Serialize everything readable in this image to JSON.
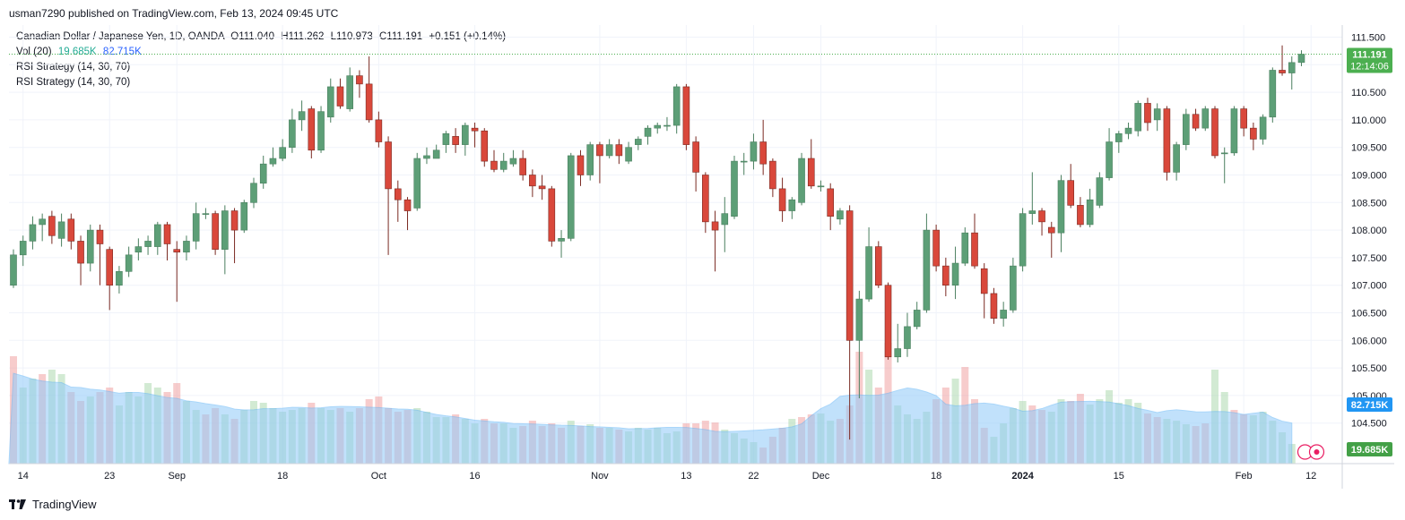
{
  "header": {
    "publisher_line": "usman7290 published on TradingView.com, Feb 13, 2024 09:45 UTC"
  },
  "legend": {
    "symbol": "Canadian Dollar / Japanese Yen, 1D, OANDA",
    "open": "O111.040",
    "high": "H111.262",
    "low": "L110.973",
    "close": "C111.191",
    "change": "+0.151 (+0.14%)",
    "vol_label": "Vol (20)",
    "vol_value": "19.685K",
    "vol_ma_value": "82.715K",
    "indicator1": "RSI Strategy (14, 30, 70)",
    "indicator2": "RSI Strategy (14, 30, 70)"
  },
  "footer": {
    "brand": "TradingView"
  },
  "colors": {
    "up": "#5d9f77",
    "down": "#d9483b",
    "wick_up": "#4a7f5f",
    "wick_down": "#7a2a22",
    "grid": "#f0f3fa",
    "vol_ma_fill": "#90caf9",
    "price_badge": "#4caf50",
    "vol_ma_badge": "#2196f3",
    "vol_badge": "#43a047"
  },
  "chart_data": {
    "type": "candlestick",
    "title": "Canadian Dollar / Japanese Yen, 1D, OANDA",
    "y_axis": {
      "ticks": [
        "111.500",
        "111.000",
        "110.500",
        "110.000",
        "109.500",
        "109.000",
        "108.500",
        "108.000",
        "107.500",
        "107.000",
        "106.500",
        "106.000",
        "105.500",
        "105.000",
        "104.500"
      ],
      "range": [
        104.0,
        111.75
      ]
    },
    "x_axis": {
      "labels": [
        {
          "text": "14",
          "index": 1
        },
        {
          "text": "23",
          "index": 10
        },
        {
          "text": "Sep",
          "index": 17
        },
        {
          "text": "18",
          "index": 28
        },
        {
          "text": "Oct",
          "index": 38
        },
        {
          "text": "16",
          "index": 48
        },
        {
          "text": "Nov",
          "index": 61
        },
        {
          "text": "13",
          "index": 70
        },
        {
          "text": "22",
          "index": 77
        },
        {
          "text": "Dec",
          "index": 84
        },
        {
          "text": "18",
          "index": 96
        },
        {
          "text": "2024",
          "index": 105
        },
        {
          "text": "15",
          "index": 115
        },
        {
          "text": "Feb",
          "index": 128
        },
        {
          "text": "12",
          "index": 135
        }
      ]
    },
    "last_price_label": "111.191",
    "countdown_label": "12:14:06",
    "vol_ma_label": "82.715K",
    "vol_label": "19.685K",
    "candles": [
      [
        107.0,
        107.55,
        107.65,
        106.95
      ],
      [
        107.55,
        107.8,
        107.9,
        107.35
      ],
      [
        107.8,
        108.1,
        108.25,
        107.65
      ],
      [
        108.1,
        108.2,
        108.3,
        107.8
      ],
      [
        108.25,
        107.9,
        108.35,
        107.75
      ],
      [
        107.85,
        108.15,
        108.3,
        107.7
      ],
      [
        108.2,
        107.8,
        108.3,
        107.65
      ],
      [
        107.8,
        107.4,
        107.9,
        107.0
      ],
      [
        107.4,
        108.0,
        108.1,
        107.25
      ],
      [
        108.0,
        107.75,
        108.1,
        107.0
      ],
      [
        107.65,
        107.0,
        107.7,
        106.55
      ],
      [
        107.0,
        107.25,
        107.35,
        106.85
      ],
      [
        107.25,
        107.55,
        107.7,
        107.15
      ],
      [
        107.6,
        107.7,
        107.85,
        107.45
      ],
      [
        107.7,
        107.8,
        107.9,
        107.55
      ],
      [
        107.7,
        108.1,
        108.15,
        107.55
      ],
      [
        108.1,
        107.75,
        108.15,
        107.45
      ],
      [
        107.65,
        107.6,
        107.8,
        106.7
      ],
      [
        107.6,
        107.8,
        107.9,
        107.45
      ],
      [
        107.8,
        108.3,
        108.5,
        107.65
      ],
      [
        108.3,
        108.3,
        108.4,
        108.2
      ],
      [
        108.3,
        107.65,
        108.35,
        107.55
      ],
      [
        107.65,
        108.35,
        108.45,
        107.2
      ],
      [
        108.35,
        108.0,
        108.4,
        107.4
      ],
      [
        108.0,
        108.5,
        108.55,
        107.95
      ],
      [
        108.5,
        108.85,
        108.95,
        108.4
      ],
      [
        108.85,
        109.2,
        109.35,
        108.75
      ],
      [
        109.2,
        109.3,
        109.5,
        109.15
      ],
      [
        109.3,
        109.5,
        109.65,
        109.25
      ],
      [
        109.5,
        110.0,
        110.2,
        109.4
      ],
      [
        110.0,
        110.15,
        110.35,
        109.8
      ],
      [
        110.2,
        109.45,
        110.25,
        109.3
      ],
      [
        109.45,
        110.15,
        110.25,
        109.4
      ],
      [
        110.05,
        110.6,
        110.75,
        109.95
      ],
      [
        110.6,
        110.25,
        110.75,
        110.2
      ],
      [
        110.2,
        110.8,
        110.95,
        110.15
      ],
      [
        110.8,
        110.65,
        110.9,
        110.4
      ],
      [
        110.65,
        110.0,
        111.15,
        109.95
      ],
      [
        110.0,
        109.6,
        110.15,
        109.5
      ],
      [
        109.6,
        108.75,
        109.7,
        107.55
      ],
      [
        108.75,
        108.55,
        108.9,
        108.15
      ],
      [
        108.55,
        108.35,
        108.6,
        108.0
      ],
      [
        108.4,
        109.3,
        109.4,
        108.35
      ],
      [
        109.3,
        109.35,
        109.5,
        109.2
      ],
      [
        109.3,
        109.45,
        109.55,
        109.35
      ],
      [
        109.55,
        109.75,
        109.8,
        109.4
      ],
      [
        109.7,
        109.55,
        109.85,
        109.4
      ],
      [
        109.55,
        109.9,
        109.95,
        109.35
      ],
      [
        109.85,
        109.8,
        109.95,
        109.5
      ],
      [
        109.8,
        109.25,
        109.85,
        109.15
      ],
      [
        109.25,
        109.1,
        109.45,
        109.05
      ],
      [
        109.1,
        109.25,
        109.4,
        109.05
      ],
      [
        109.2,
        109.3,
        109.45,
        109.15
      ],
      [
        109.3,
        109.0,
        109.45,
        108.9
      ],
      [
        109.0,
        108.8,
        109.1,
        108.6
      ],
      [
        108.8,
        108.75,
        109.0,
        108.55
      ],
      [
        108.75,
        107.8,
        108.8,
        107.7
      ],
      [
        107.8,
        107.85,
        108.0,
        107.5
      ],
      [
        107.85,
        109.35,
        109.4,
        107.8
      ],
      [
        109.35,
        109.0,
        109.45,
        108.8
      ],
      [
        109.0,
        109.55,
        109.6,
        108.9
      ],
      [
        109.55,
        109.35,
        109.6,
        108.85
      ],
      [
        109.35,
        109.55,
        109.65,
        109.3
      ],
      [
        109.55,
        109.35,
        109.65,
        109.2
      ],
      [
        109.25,
        109.5,
        109.6,
        109.2
      ],
      [
        109.55,
        109.65,
        109.7,
        109.45
      ],
      [
        109.7,
        109.85,
        109.9,
        109.55
      ],
      [
        109.85,
        109.9,
        109.95,
        109.75
      ],
      [
        109.9,
        109.9,
        110.05,
        109.8
      ],
      [
        109.9,
        110.6,
        110.65,
        109.75
      ],
      [
        110.6,
        109.55,
        110.65,
        109.45
      ],
      [
        109.6,
        109.05,
        109.7,
        108.7
      ],
      [
        109.0,
        108.15,
        109.05,
        107.95
      ],
      [
        108.15,
        108.0,
        108.35,
        107.25
      ],
      [
        108.1,
        108.3,
        108.6,
        107.6
      ],
      [
        108.25,
        109.25,
        109.35,
        108.2
      ],
      [
        109.25,
        109.25,
        109.4,
        109.0
      ],
      [
        109.25,
        109.6,
        109.75,
        109.1
      ],
      [
        109.6,
        109.2,
        110.0,
        109.0
      ],
      [
        109.25,
        108.75,
        109.3,
        108.6
      ],
      [
        108.75,
        108.35,
        108.95,
        108.15
      ],
      [
        108.35,
        108.55,
        108.6,
        108.2
      ],
      [
        108.5,
        109.3,
        109.4,
        108.45
      ],
      [
        109.3,
        108.8,
        109.65,
        108.75
      ],
      [
        108.8,
        108.8,
        108.9,
        108.7
      ],
      [
        108.75,
        108.25,
        108.85,
        108.0
      ],
      [
        108.2,
        108.35,
        108.4,
        108.1
      ],
      [
        108.35,
        106.0,
        108.45,
        104.2
      ],
      [
        106.0,
        106.75,
        106.9,
        104.95
      ],
      [
        106.75,
        107.7,
        108.05,
        106.7
      ],
      [
        107.7,
        107.0,
        107.8,
        106.95
      ],
      [
        107.0,
        105.7,
        107.05,
        105.65
      ],
      [
        105.7,
        105.85,
        106.3,
        105.6
      ],
      [
        105.85,
        106.25,
        106.5,
        105.7
      ],
      [
        106.25,
        106.55,
        106.7,
        106.2
      ],
      [
        106.55,
        108.0,
        108.3,
        106.5
      ],
      [
        108.0,
        107.35,
        108.1,
        107.25
      ],
      [
        107.35,
        107.0,
        107.5,
        106.8
      ],
      [
        107.0,
        107.4,
        107.7,
        106.75
      ],
      [
        107.4,
        107.95,
        108.05,
        107.35
      ],
      [
        107.95,
        107.35,
        108.3,
        107.3
      ],
      [
        107.3,
        106.85,
        107.4,
        106.4
      ],
      [
        106.85,
        106.4,
        106.95,
        106.3
      ],
      [
        106.4,
        106.55,
        106.7,
        106.25
      ],
      [
        106.55,
        107.35,
        107.5,
        106.5
      ],
      [
        107.35,
        108.3,
        108.4,
        107.25
      ],
      [
        108.3,
        108.35,
        109.05,
        108.1
      ],
      [
        108.35,
        108.15,
        108.4,
        107.9
      ],
      [
        108.05,
        107.95,
        108.15,
        107.5
      ],
      [
        107.95,
        108.9,
        109.0,
        107.6
      ],
      [
        108.9,
        108.45,
        109.2,
        108.4
      ],
      [
        108.45,
        108.1,
        108.6,
        108.05
      ],
      [
        108.1,
        108.55,
        108.75,
        108.05
      ],
      [
        108.45,
        108.95,
        109.05,
        108.4
      ],
      [
        108.95,
        109.6,
        109.85,
        108.9
      ],
      [
        109.6,
        109.75,
        109.8,
        109.4
      ],
      [
        109.75,
        109.85,
        109.95,
        109.65
      ],
      [
        109.8,
        110.3,
        110.35,
        109.7
      ],
      [
        110.3,
        109.95,
        110.4,
        109.8
      ],
      [
        110.0,
        110.2,
        110.3,
        109.8
      ],
      [
        110.2,
        109.05,
        110.25,
        108.9
      ],
      [
        109.05,
        109.55,
        109.6,
        108.9
      ],
      [
        109.55,
        110.1,
        110.2,
        109.45
      ],
      [
        110.1,
        109.85,
        110.2,
        109.8
      ],
      [
        109.85,
        110.2,
        110.25,
        109.8
      ],
      [
        110.2,
        109.35,
        110.25,
        109.3
      ],
      [
        109.4,
        109.4,
        109.5,
        108.85
      ],
      [
        109.4,
        110.2,
        110.25,
        109.35
      ],
      [
        110.2,
        109.85,
        110.25,
        109.7
      ],
      [
        109.85,
        109.65,
        109.95,
        109.45
      ],
      [
        109.65,
        110.05,
        110.1,
        109.55
      ],
      [
        110.05,
        110.9,
        110.95,
        109.95
      ],
      [
        110.9,
        110.85,
        111.35,
        110.8
      ],
      [
        110.85,
        111.04,
        111.15,
        110.55
      ],
      [
        111.04,
        111.191,
        111.262,
        110.973
      ]
    ],
    "volume": [
      [
        1.2,
        0
      ],
      [
        0.85,
        1
      ],
      [
        0.95,
        1
      ],
      [
        1.0,
        0
      ],
      [
        1.05,
        1
      ],
      [
        1.0,
        1
      ],
      [
        0.8,
        0
      ],
      [
        0.7,
        0
      ],
      [
        0.75,
        1
      ],
      [
        0.8,
        0
      ],
      [
        0.85,
        0
      ],
      [
        0.65,
        1
      ],
      [
        0.8,
        1
      ],
      [
        0.75,
        1
      ],
      [
        0.9,
        1
      ],
      [
        0.85,
        1
      ],
      [
        0.8,
        0
      ],
      [
        0.9,
        0
      ],
      [
        0.7,
        1
      ],
      [
        0.6,
        1
      ],
      [
        0.55,
        0
      ],
      [
        0.62,
        0
      ],
      [
        0.55,
        1
      ],
      [
        0.5,
        0
      ],
      [
        0.6,
        1
      ],
      [
        0.7,
        1
      ],
      [
        0.68,
        1
      ],
      [
        0.62,
        1
      ],
      [
        0.58,
        1
      ],
      [
        0.6,
        1
      ],
      [
        0.62,
        1
      ],
      [
        0.68,
        0
      ],
      [
        0.62,
        1
      ],
      [
        0.6,
        1
      ],
      [
        0.62,
        0
      ],
      [
        0.58,
        1
      ],
      [
        0.62,
        0
      ],
      [
        0.72,
        0
      ],
      [
        0.75,
        0
      ],
      [
        0.62,
        0
      ],
      [
        0.58,
        0
      ],
      [
        0.6,
        0
      ],
      [
        0.62,
        1
      ],
      [
        0.58,
        1
      ],
      [
        0.52,
        1
      ],
      [
        0.52,
        1
      ],
      [
        0.55,
        0
      ],
      [
        0.5,
        1
      ],
      [
        0.45,
        1
      ],
      [
        0.5,
        0
      ],
      [
        0.45,
        0
      ],
      [
        0.45,
        1
      ],
      [
        0.4,
        1
      ],
      [
        0.42,
        0
      ],
      [
        0.48,
        0
      ],
      [
        0.42,
        0
      ],
      [
        0.45,
        0
      ],
      [
        0.4,
        0
      ],
      [
        0.48,
        1
      ],
      [
        0.42,
        0
      ],
      [
        0.44,
        1
      ],
      [
        0.4,
        0
      ],
      [
        0.4,
        1
      ],
      [
        0.38,
        0
      ],
      [
        0.36,
        1
      ],
      [
        0.4,
        1
      ],
      [
        0.38,
        1
      ],
      [
        0.4,
        1
      ],
      [
        0.34,
        1
      ],
      [
        0.36,
        1
      ],
      [
        0.45,
        0
      ],
      [
        0.45,
        0
      ],
      [
        0.48,
        0
      ],
      [
        0.46,
        0
      ],
      [
        0.38,
        1
      ],
      [
        0.34,
        1
      ],
      [
        0.28,
        1
      ],
      [
        0.24,
        1
      ],
      [
        0.18,
        0
      ],
      [
        0.3,
        0
      ],
      [
        0.4,
        0
      ],
      [
        0.5,
        1
      ],
      [
        0.52,
        0
      ],
      [
        0.55,
        0
      ],
      [
        0.56,
        1
      ],
      [
        0.48,
        1
      ],
      [
        0.5,
        0
      ],
      [
        0.65,
        0
      ],
      [
        1.25,
        0
      ],
      [
        1.05,
        1
      ],
      [
        0.85,
        0
      ],
      [
        1.35,
        0
      ],
      [
        0.65,
        1
      ],
      [
        0.55,
        1
      ],
      [
        0.5,
        1
      ],
      [
        0.58,
        1
      ],
      [
        0.72,
        0
      ],
      [
        0.85,
        0
      ],
      [
        0.95,
        1
      ],
      [
        1.08,
        0
      ],
      [
        0.72,
        0
      ],
      [
        0.4,
        0
      ],
      [
        0.3,
        1
      ],
      [
        0.45,
        1
      ],
      [
        0.62,
        1
      ],
      [
        0.7,
        1
      ],
      [
        0.65,
        0
      ],
      [
        0.6,
        0
      ],
      [
        0.58,
        1
      ],
      [
        0.72,
        1
      ],
      [
        0.7,
        0
      ],
      [
        0.78,
        0
      ],
      [
        0.66,
        1
      ],
      [
        0.72,
        1
      ],
      [
        0.82,
        1
      ],
      [
        0.68,
        1
      ],
      [
        0.72,
        1
      ],
      [
        0.68,
        1
      ],
      [
        0.56,
        0
      ],
      [
        0.52,
        0
      ],
      [
        0.5,
        1
      ],
      [
        0.48,
        1
      ],
      [
        0.44,
        1
      ],
      [
        0.42,
        0
      ],
      [
        0.45,
        0
      ],
      [
        1.05,
        1
      ],
      [
        0.8,
        1
      ],
      [
        0.6,
        0
      ],
      [
        0.55,
        0
      ],
      [
        0.54,
        1
      ],
      [
        0.58,
        1
      ],
      [
        0.48,
        1
      ],
      [
        0.35,
        1
      ],
      [
        0.22,
        1
      ]
    ]
  }
}
